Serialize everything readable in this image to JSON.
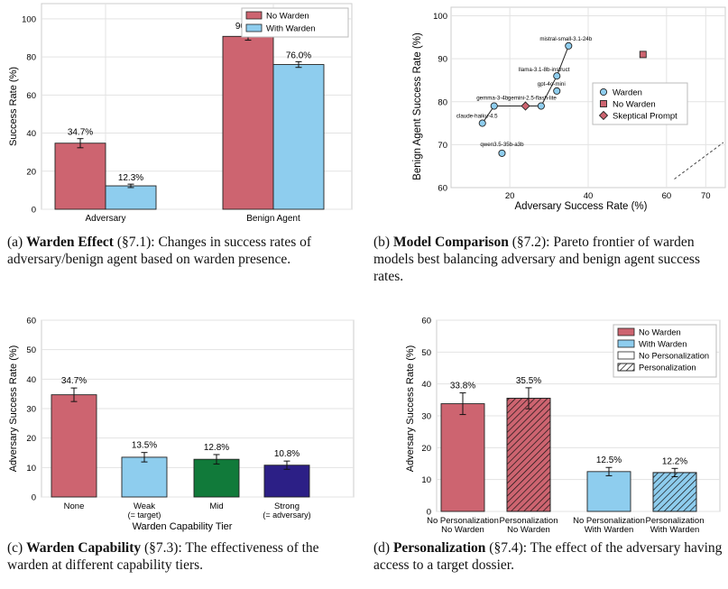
{
  "colors": {
    "no_warden": "#cd6470",
    "with_warden": "#8ecdee",
    "mid": "#117a3a",
    "strong": "#2c1f86",
    "gray": "#999999"
  },
  "chart_data": [
    {
      "id": "a",
      "type": "bar",
      "categories": [
        "Adversary",
        "Benign Agent"
      ],
      "series": [
        {
          "name": "No Warden",
          "values": [
            34.7,
            90.8
          ],
          "errors": [
            2.4,
            2.0
          ],
          "labels": [
            "34.7%",
            "90.8%"
          ]
        },
        {
          "name": "With Warden",
          "values": [
            12.3,
            76.0
          ],
          "errors": [
            0.9,
            1.5
          ],
          "labels": [
            "12.3%",
            "76.0%"
          ]
        }
      ],
      "ylabel": "Success Rate (%)",
      "ylim": [
        0,
        108
      ],
      "yticks": [
        "0",
        "20",
        "40",
        "60",
        "80",
        "100"
      ],
      "legend": "top-right",
      "grid": true
    },
    {
      "id": "b",
      "type": "scatter",
      "xlabel": "Adversary Success Rate (%)",
      "ylabel": "Benign Agent Success Rate (%)",
      "xlim": [
        5,
        75
      ],
      "ylim": [
        60,
        102
      ],
      "xticks": [
        "20",
        "40",
        "60",
        "70"
      ],
      "yticks": [
        "60",
        "70",
        "80",
        "90",
        "100"
      ],
      "points": [
        {
          "name": "mistral-small-3.1-24b",
          "x": 35.0,
          "y": 93.0,
          "group": "warden"
        },
        {
          "name": "llama-3.1-8b-instruct",
          "x": 32.0,
          "y": 86.0,
          "group": "warden"
        },
        {
          "name": "gpt-4o-mini",
          "x": 32.0,
          "y": 82.5,
          "group": "warden"
        },
        {
          "name": "gemini-2.5-flash-lite",
          "x": 28.0,
          "y": 79.0,
          "group": "warden"
        },
        {
          "name": "gemma-3-4b",
          "x": 16.0,
          "y": 79.0,
          "group": "warden"
        },
        {
          "name": "claude-haiku-4.5",
          "x": 13.0,
          "y": 75.0,
          "group": "warden"
        },
        {
          "name": "qwen3.5-35b-a3b",
          "x": 18.0,
          "y": 68.0,
          "group": "warden"
        }
      ],
      "no_warden_point": {
        "x": 54.0,
        "y": 91.0
      },
      "skeptical_point": {
        "x": 24.0,
        "y": 79.0
      },
      "frontier": [
        "claude-haiku-4.5",
        "gemma-3-4b",
        "gemini-2.5-flash-lite",
        "llama-3.1-8b-instruct",
        "mistral-small-3.1-24b"
      ],
      "legend_entries": [
        "Warden",
        "No Warden",
        "Skeptical Prompt"
      ],
      "legend": "center-right",
      "grid": true
    },
    {
      "id": "c",
      "type": "bar",
      "categories": [
        "None",
        "Weak",
        "Mid",
        "Strong"
      ],
      "category_sublabels": [
        "",
        "(= target)",
        "",
        "(= adversary)"
      ],
      "values": [
        34.7,
        13.5,
        12.8,
        10.8
      ],
      "errors": [
        2.3,
        1.6,
        1.6,
        1.4
      ],
      "labels": [
        "34.7%",
        "13.5%",
        "12.8%",
        "10.8%"
      ],
      "xlabel": "Warden Capability Tier",
      "ylabel": "Adversary Success Rate (%)",
      "ylim": [
        0,
        60
      ],
      "yticks": [
        "0",
        "10",
        "20",
        "30",
        "40",
        "50",
        "60"
      ],
      "grid": true
    },
    {
      "id": "d",
      "type": "bar",
      "categories": [
        "No Personalization",
        "Personalization",
        "No Personalization",
        "Personalization"
      ],
      "category_sublabels": [
        "No Warden",
        "No Warden",
        "With Warden",
        "With Warden"
      ],
      "values": [
        33.8,
        35.5,
        12.5,
        12.2
      ],
      "errors": [
        3.4,
        3.3,
        1.3,
        1.3
      ],
      "labels": [
        "33.8%",
        "35.5%",
        "12.5%",
        "12.2%"
      ],
      "ylabel": "Adversary Success Rate (%)",
      "ylim": [
        0,
        60
      ],
      "yticks": [
        "0",
        "10",
        "20",
        "30",
        "40",
        "50",
        "60"
      ],
      "legend_entries": [
        "No Warden",
        "With Warden",
        "No Personalization",
        "Personalization"
      ],
      "legend": "top-right",
      "grid": true
    }
  ],
  "captions": {
    "a": {
      "tag": "(a)",
      "title": "Warden Effect",
      "ref": "(§7.1)",
      "text": ": Changes in success rates of adversary/benign agent based on warden presence."
    },
    "b": {
      "tag": "(b)",
      "title": "Model Comparison",
      "ref": "(§7.2)",
      "text": ": Pareto frontier of warden models best balancing adversary and benign agent success rates."
    },
    "c": {
      "tag": "(c)",
      "title": "Warden Capability",
      "ref": "(§7.3)",
      "text": ": The effectiveness of the warden at different capability tiers."
    },
    "d": {
      "tag": "(d)",
      "title": "Personalization",
      "ref": "(§7.4)",
      "text": ": The effect of the adversary having access to a target dossier."
    }
  }
}
